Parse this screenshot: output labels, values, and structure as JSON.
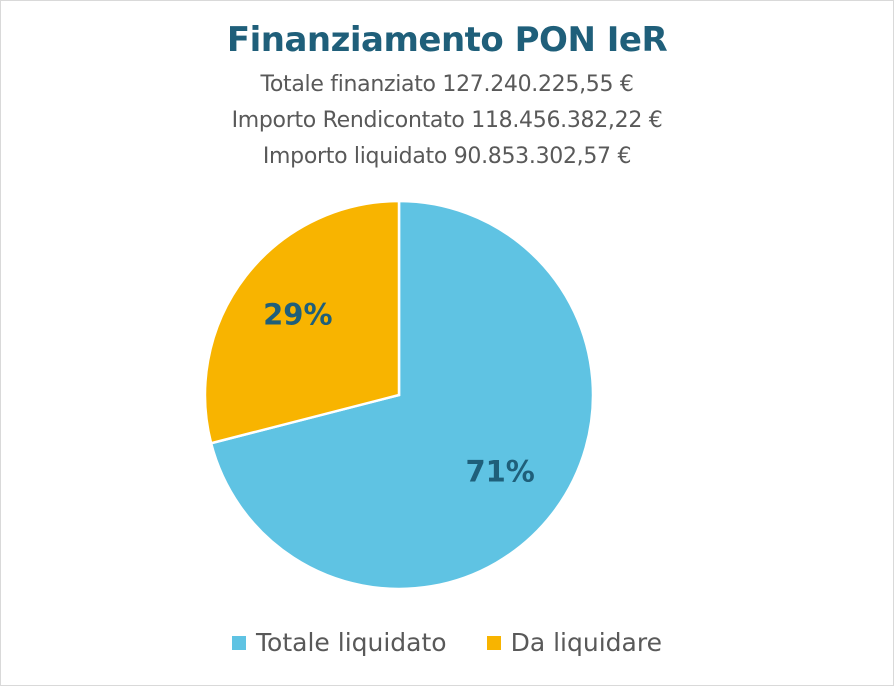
{
  "chart_data": {
    "type": "pie",
    "title": "Finanziamento PON IeR",
    "subtitle_lines": [
      "Totale finanziato 127.240.225,55 €",
      "Importo Rendicontato 118.456.382,22 €",
      "Importo liquidato 90.853.302,57 €"
    ],
    "slices": [
      {
        "label": "Totale liquidato",
        "value": 71,
        "display": "71%",
        "color": "#5fc3e3"
      },
      {
        "label": "Da liquidare",
        "value": 29,
        "display": "29%",
        "color": "#f8b400"
      }
    ],
    "legend_position": "bottom",
    "label_color": "#1f5f7a"
  }
}
